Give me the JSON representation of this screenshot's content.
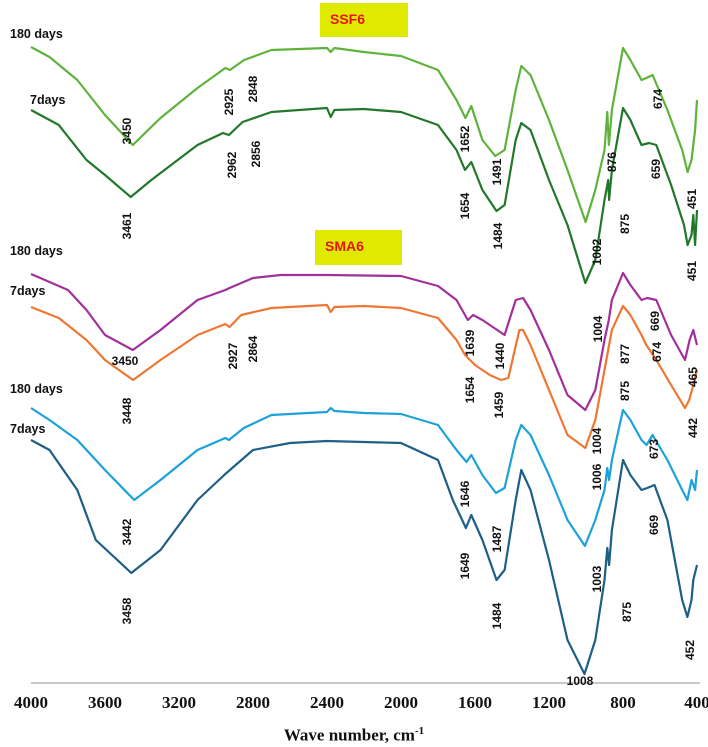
{
  "chart_data": {
    "type": "line",
    "title": "",
    "xlabel": "Wave number, cm",
    "xlabel_sup": "-1",
    "ylabel": "",
    "xlim": [
      4000,
      400
    ],
    "ylim": [
      0,
      68.3
    ],
    "x_ticks": [
      "4000",
      "3600",
      "3200",
      "2800",
      "2400",
      "2000",
      "1600",
      "1200",
      "800",
      "400"
    ],
    "grid": false,
    "groups": [
      {
        "name": "SSF6",
        "labels": [
          "180 days",
          "7days"
        ]
      },
      {
        "name": "SMA6",
        "labels": [
          "180 days",
          "7days"
        ]
      },
      {
        "name": "",
        "labels": [
          "180 days",
          "7days"
        ]
      }
    ],
    "series": [
      {
        "name": "SSF6 180 days",
        "color": "#5fb33c",
        "points": [
          [
            4000,
            63.6
          ],
          [
            3900,
            62.6
          ],
          [
            3750,
            60.3
          ],
          [
            3600,
            56.8
          ],
          [
            3450,
            53.8
          ],
          [
            3300,
            56.5
          ],
          [
            3100,
            59.5
          ],
          [
            2950,
            61.5
          ],
          [
            2925,
            61.3
          ],
          [
            2848,
            62.3
          ],
          [
            2700,
            63.3
          ],
          [
            2400,
            63.5
          ],
          [
            2380,
            63.1
          ],
          [
            2360,
            63.5
          ],
          [
            2200,
            63.1
          ],
          [
            2000,
            62.7
          ],
          [
            1800,
            61.3
          ],
          [
            1700,
            58.3
          ],
          [
            1652,
            56.5
          ],
          [
            1620,
            57.7
          ],
          [
            1560,
            54.3
          ],
          [
            1491,
            52.7
          ],
          [
            1440,
            53.3
          ],
          [
            1380,
            59.3
          ],
          [
            1350,
            61.7
          ],
          [
            1300,
            60.8
          ],
          [
            1200,
            56.3
          ],
          [
            1100,
            51.3
          ],
          [
            1002,
            46.1
          ],
          [
            950,
            49.3
          ],
          [
            900,
            53.3
          ],
          [
            885,
            57.1
          ],
          [
            876,
            53.8
          ],
          [
            860,
            57.3
          ],
          [
            800,
            63.5
          ],
          [
            760,
            62.3
          ],
          [
            700,
            60.3
          ],
          [
            674,
            60.5
          ],
          [
            640,
            60.8
          ],
          [
            560,
            57.3
          ],
          [
            480,
            53.3
          ],
          [
            451,
            51.1
          ],
          [
            430,
            52.3
          ],
          [
            410,
            55.3
          ],
          [
            400,
            58.3
          ]
        ]
      },
      {
        "name": "SSF6 7days",
        "color": "#22782a",
        "points": [
          [
            4000,
            57.3
          ],
          [
            3850,
            55.8
          ],
          [
            3700,
            52.3
          ],
          [
            3600,
            50.8
          ],
          [
            3461,
            48.6
          ],
          [
            3350,
            50.3
          ],
          [
            3100,
            53.8
          ],
          [
            2962,
            55.0
          ],
          [
            2930,
            54.8
          ],
          [
            2856,
            56.1
          ],
          [
            2700,
            57.1
          ],
          [
            2400,
            57.5
          ],
          [
            2380,
            56.6
          ],
          [
            2360,
            57.3
          ],
          [
            2200,
            57.4
          ],
          [
            2000,
            57.1
          ],
          [
            1800,
            55.8
          ],
          [
            1700,
            53.3
          ],
          [
            1654,
            51.3
          ],
          [
            1620,
            52.1
          ],
          [
            1560,
            49.3
          ],
          [
            1484,
            47.2
          ],
          [
            1440,
            47.8
          ],
          [
            1380,
            54.3
          ],
          [
            1350,
            56.0
          ],
          [
            1300,
            55.3
          ],
          [
            1200,
            50.3
          ],
          [
            1100,
            45.8
          ],
          [
            1004,
            40.0
          ],
          [
            950,
            42.3
          ],
          [
            900,
            48.3
          ],
          [
            880,
            50.3
          ],
          [
            875,
            48.3
          ],
          [
            860,
            51.3
          ],
          [
            800,
            57.5
          ],
          [
            760,
            56.3
          ],
          [
            700,
            53.8
          ],
          [
            659,
            54.0
          ],
          [
            620,
            53.8
          ],
          [
            540,
            49.8
          ],
          [
            470,
            45.8
          ],
          [
            451,
            43.8
          ],
          [
            430,
            44.8
          ],
          [
            420,
            46.8
          ],
          [
            410,
            43.8
          ],
          [
            400,
            47.3
          ]
        ]
      },
      {
        "name": "SMA6 180 days",
        "color": "#a2309c",
        "points": [
          [
            4000,
            40.9
          ],
          [
            3950,
            40.5
          ],
          [
            3800,
            39.3
          ],
          [
            3700,
            37.3
          ],
          [
            3600,
            34.8
          ],
          [
            3450,
            33.3
          ],
          [
            3300,
            35.3
          ],
          [
            3100,
            38.3
          ],
          [
            2950,
            39.3
          ],
          [
            2927,
            39.5
          ],
          [
            2800,
            40.5
          ],
          [
            2650,
            40.8
          ],
          [
            2400,
            40.8
          ],
          [
            2000,
            40.7
          ],
          [
            1800,
            39.7
          ],
          [
            1700,
            38.3
          ],
          [
            1639,
            36.3
          ],
          [
            1610,
            36.8
          ],
          [
            1560,
            36.3
          ],
          [
            1440,
            34.8
          ],
          [
            1380,
            38.3
          ],
          [
            1340,
            38.5
          ],
          [
            1300,
            37.3
          ],
          [
            1200,
            33.3
          ],
          [
            1100,
            28.8
          ],
          [
            1004,
            27.3
          ],
          [
            950,
            29.3
          ],
          [
            900,
            34.3
          ],
          [
            877,
            36.3
          ],
          [
            860,
            38.3
          ],
          [
            800,
            41.0
          ],
          [
            760,
            39.8
          ],
          [
            700,
            38.3
          ],
          [
            669,
            38.5
          ],
          [
            620,
            38.3
          ],
          [
            540,
            34.8
          ],
          [
            465,
            32.3
          ],
          [
            440,
            34.3
          ],
          [
            420,
            35.3
          ],
          [
            400,
            33.8
          ]
        ]
      },
      {
        "name": "SMA6 7days",
        "color": "#ef7734",
        "points": [
          [
            4000,
            37.6
          ],
          [
            3850,
            36.5
          ],
          [
            3700,
            34.3
          ],
          [
            3600,
            32.3
          ],
          [
            3448,
            30.3
          ],
          [
            3300,
            32.3
          ],
          [
            3100,
            34.8
          ],
          [
            2950,
            35.9
          ],
          [
            2927,
            35.6
          ],
          [
            2864,
            36.8
          ],
          [
            2700,
            37.5
          ],
          [
            2400,
            37.8
          ],
          [
            2380,
            37.1
          ],
          [
            2360,
            37.6
          ],
          [
            2200,
            37.7
          ],
          [
            2000,
            37.5
          ],
          [
            1800,
            36.5
          ],
          [
            1700,
            34.3
          ],
          [
            1654,
            32.8
          ],
          [
            1600,
            31.8
          ],
          [
            1520,
            30.8
          ],
          [
            1459,
            30.3
          ],
          [
            1420,
            30.5
          ],
          [
            1360,
            35.3
          ],
          [
            1340,
            35.3
          ],
          [
            1300,
            33.8
          ],
          [
            1200,
            29.3
          ],
          [
            1100,
            24.8
          ],
          [
            1004,
            23.5
          ],
          [
            950,
            26.3
          ],
          [
            900,
            31.3
          ],
          [
            875,
            33.8
          ],
          [
            860,
            35.3
          ],
          [
            800,
            37.7
          ],
          [
            760,
            36.8
          ],
          [
            700,
            34.8
          ],
          [
            674,
            33.8
          ],
          [
            620,
            32.3
          ],
          [
            540,
            29.8
          ],
          [
            465,
            27.5
          ],
          [
            442,
            28.3
          ],
          [
            420,
            29.8
          ],
          [
            400,
            31.3
          ]
        ]
      },
      {
        "name": "180 days",
        "color": "#1ca2d9",
        "points": [
          [
            4000,
            27.5
          ],
          [
            3900,
            26.3
          ],
          [
            3750,
            24.3
          ],
          [
            3600,
            21.3
          ],
          [
            3442,
            18.3
          ],
          [
            3300,
            20.3
          ],
          [
            3100,
            23.3
          ],
          [
            2950,
            24.5
          ],
          [
            2930,
            24.3
          ],
          [
            2850,
            25.5
          ],
          [
            2700,
            26.8
          ],
          [
            2400,
            27.1
          ],
          [
            2380,
            27.5
          ],
          [
            2360,
            27.2
          ],
          [
            2200,
            27.0
          ],
          [
            2000,
            26.9
          ],
          [
            1800,
            25.8
          ],
          [
            1700,
            23.3
          ],
          [
            1646,
            22.1
          ],
          [
            1620,
            22.8
          ],
          [
            1560,
            20.8
          ],
          [
            1487,
            19.0
          ],
          [
            1440,
            19.5
          ],
          [
            1380,
            24.3
          ],
          [
            1350,
            25.8
          ],
          [
            1300,
            24.8
          ],
          [
            1200,
            20.8
          ],
          [
            1100,
            16.3
          ],
          [
            1006,
            13.7
          ],
          [
            950,
            16.3
          ],
          [
            900,
            19.3
          ],
          [
            885,
            21.5
          ],
          [
            875,
            20.3
          ],
          [
            860,
            22.3
          ],
          [
            800,
            27.3
          ],
          [
            760,
            26.3
          ],
          [
            700,
            24.3
          ],
          [
            673,
            23.8
          ],
          [
            640,
            24.8
          ],
          [
            560,
            22.3
          ],
          [
            480,
            19.3
          ],
          [
            452,
            18.3
          ],
          [
            430,
            20.3
          ],
          [
            410,
            19.3
          ],
          [
            400,
            21.3
          ]
        ]
      },
      {
        "name": "7days",
        "color": "#1d5f86",
        "points": [
          [
            4000,
            24.3
          ],
          [
            3900,
            23.3
          ],
          [
            3750,
            19.3
          ],
          [
            3650,
            14.3
          ],
          [
            3458,
            11.0
          ],
          [
            3300,
            13.3
          ],
          [
            3100,
            18.3
          ],
          [
            2950,
            20.9
          ],
          [
            2800,
            23.3
          ],
          [
            2600,
            24.0
          ],
          [
            2400,
            24.2
          ],
          [
            2000,
            24.0
          ],
          [
            1800,
            22.3
          ],
          [
            1720,
            18.3
          ],
          [
            1649,
            15.5
          ],
          [
            1620,
            16.8
          ],
          [
            1560,
            14.3
          ],
          [
            1484,
            10.3
          ],
          [
            1440,
            11.3
          ],
          [
            1380,
            18.3
          ],
          [
            1350,
            21.3
          ],
          [
            1300,
            19.3
          ],
          [
            1200,
            12.3
          ],
          [
            1100,
            4.3
          ],
          [
            1008,
            0.9
          ],
          [
            950,
            4.3
          ],
          [
            900,
            10.3
          ],
          [
            885,
            13.5
          ],
          [
            875,
            11.8
          ],
          [
            860,
            15.3
          ],
          [
            800,
            22.3
          ],
          [
            760,
            20.8
          ],
          [
            700,
            19.3
          ],
          [
            669,
            19.5
          ],
          [
            630,
            19.8
          ],
          [
            560,
            16.3
          ],
          [
            480,
            8.3
          ],
          [
            452,
            6.6
          ],
          [
            430,
            8.3
          ],
          [
            420,
            10.3
          ],
          [
            400,
            11.8
          ]
        ]
      }
    ],
    "annotations": [
      "3450",
      "2925",
      "2848",
      "2962",
      "2856",
      "1652",
      "1491",
      "1654",
      "1484",
      "1002",
      "876",
      "875",
      "659",
      "674",
      "451",
      "451",
      "3461",
      "1004",
      "3450",
      "3448",
      "2927",
      "2864",
      "1639",
      "1440",
      "1654",
      "1459",
      "1004",
      "877",
      "669",
      "674",
      "875",
      "465",
      "442",
      "1006",
      "673",
      "1646",
      "3442",
      "1487",
      "669",
      "1649",
      "1003",
      "3458",
      "1484",
      "875",
      "452",
      "1008"
    ]
  }
}
